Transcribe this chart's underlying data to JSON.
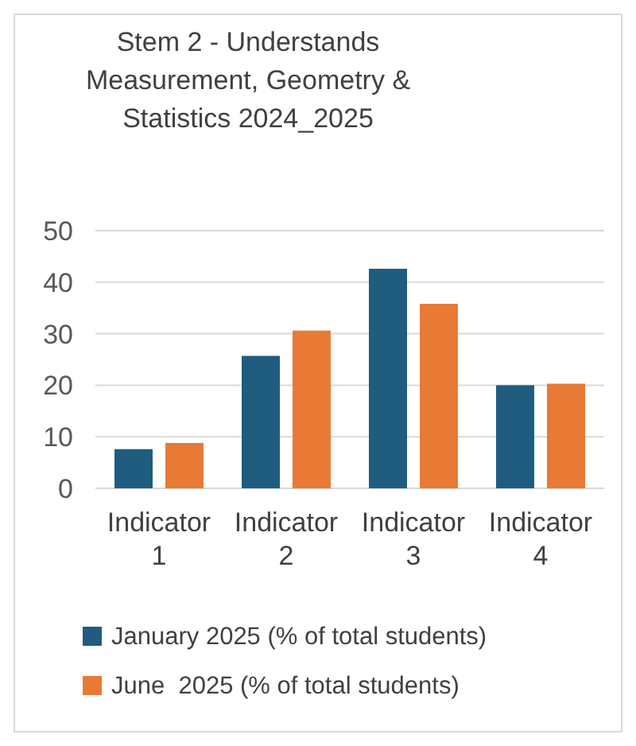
{
  "chart_data": {
    "type": "bar",
    "title": "Stem 2 - Understands Measurement, Geometry & Statistics 2024_2025",
    "categories": [
      "Indicator 1",
      "Indicator 2",
      "Indicator 3",
      "Indicator 4"
    ],
    "series": [
      {
        "name": "January 2025 (% of total students)",
        "color": "#1f5c80",
        "values": [
          7.6,
          25.7,
          42.6,
          20
        ]
      },
      {
        "name": "June  2025 (% of total students)",
        "color": "#e87a35",
        "values": [
          8.8,
          30.6,
          35.8,
          20.3
        ]
      }
    ],
    "ylim": [
      0,
      50
    ],
    "yticks": [
      0,
      10,
      20,
      30,
      40,
      50
    ],
    "grid": "y",
    "legend": "bottom"
  }
}
